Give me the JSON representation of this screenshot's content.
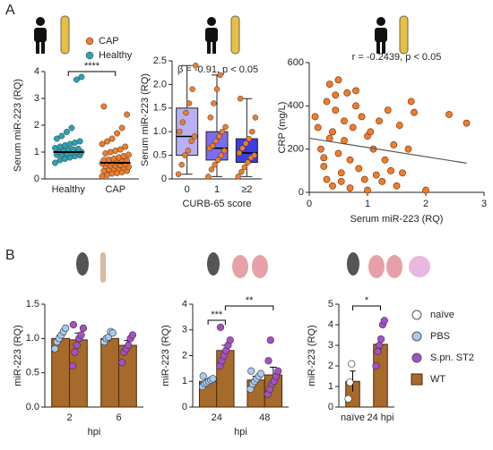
{
  "panel_labels": [
    "A",
    "B"
  ],
  "chart_data": [
    {
      "type": "strip",
      "ylabel": "Serum miR-223 (RQ)",
      "categories": [
        "Healthy",
        "CAP"
      ],
      "series": [
        {
          "name": "CAP",
          "color": "#f07c2a",
          "values": [
            0.1,
            0.15,
            0.2,
            0.22,
            0.25,
            0.3,
            0.3,
            0.35,
            0.38,
            0.4,
            0.42,
            0.45,
            0.48,
            0.5,
            0.5,
            0.52,
            0.55,
            0.58,
            0.6,
            0.6,
            0.62,
            0.65,
            0.68,
            0.7,
            0.72,
            0.75,
            0.8,
            0.85,
            0.9,
            0.95,
            1.0,
            1.05,
            1.1,
            1.2,
            1.3,
            1.4,
            1.5,
            1.7,
            1.9,
            2.4,
            2.7
          ]
        },
        {
          "name": "Healthy",
          "color": "#2ba3b3",
          "values": [
            0.6,
            0.7,
            0.75,
            0.8,
            0.85,
            0.88,
            0.9,
            0.92,
            0.95,
            0.98,
            1.0,
            1.0,
            1.02,
            1.05,
            1.08,
            1.1,
            1.12,
            1.15,
            1.2,
            1.25,
            1.3,
            1.35,
            1.4,
            1.5,
            1.6,
            1.75,
            1.9,
            3.7,
            3.8
          ]
        }
      ],
      "medians": [
        1.0,
        0.6
      ],
      "ylim": [
        0,
        4
      ],
      "yticks": [
        0,
        1,
        2,
        3,
        4
      ],
      "annotation": "****"
    },
    {
      "type": "box",
      "ylabel": "Serum miR-223 (RQ)",
      "xlabel": "CURB-65 score",
      "categories": [
        "0",
        "1",
        "≥2"
      ],
      "annotation": "β = -0.91, p < 0.05",
      "colors": [
        "#b9b0f2",
        "#7a6ef0",
        "#3b3fe0"
      ],
      "point_color": "#f07c2a",
      "boxes": [
        {
          "min": 0.1,
          "q1": 0.5,
          "median": 0.9,
          "q3": 1.5,
          "max": 2.4
        },
        {
          "min": 0.05,
          "q1": 0.4,
          "median": 0.65,
          "q3": 1.0,
          "max": 2.2
        },
        {
          "min": 0.05,
          "q1": 0.35,
          "median": 0.55,
          "q3": 0.85,
          "max": 1.7
        }
      ],
      "points": [
        [
          0.1,
          0.3,
          0.5,
          0.6,
          0.8,
          0.9,
          1.0,
          1.2,
          1.4,
          1.6,
          1.9,
          2.4
        ],
        [
          0.05,
          0.2,
          0.3,
          0.4,
          0.5,
          0.6,
          0.65,
          0.7,
          0.8,
          0.9,
          1.0,
          1.1,
          1.3,
          1.6,
          1.9,
          2.2
        ],
        [
          0.05,
          0.15,
          0.25,
          0.35,
          0.45,
          0.5,
          0.55,
          0.65,
          0.75,
          0.85,
          1.0,
          1.3,
          1.7
        ]
      ],
      "ylim": [
        0,
        2.5
      ],
      "yticks": [
        0,
        {
          "value": 0.5,
          "label": "0.5"
        },
        {
          "value": 1,
          "label": "1.0"
        },
        {
          "value": 1.5,
          "label": "1.5"
        },
        {
          "value": 2,
          "label": "2.0"
        },
        {
          "value": 2.5,
          "label": "2.5"
        }
      ]
    },
    {
      "type": "scatter",
      "xlabel": "Serum miR-223 (RQ)",
      "ylabel": "CRP (mg/L)",
      "annotation": "r = -0.2439, p < 0.05",
      "color": "#f07c2a",
      "x": [
        0.1,
        0.15,
        0.2,
        0.25,
        0.3,
        0.3,
        0.35,
        0.4,
        0.4,
        0.45,
        0.5,
        0.5,
        0.55,
        0.6,
        0.6,
        0.65,
        0.7,
        0.7,
        0.75,
        0.8,
        0.85,
        0.9,
        0.95,
        1.0,
        1.0,
        1.1,
        1.15,
        1.2,
        1.25,
        1.3,
        1.35,
        1.4,
        1.5,
        1.55,
        1.6,
        1.7,
        1.75,
        1.8,
        2.0,
        2.4,
        2.7,
        0.45,
        0.55,
        0.35,
        0.25,
        1.05,
        0.8,
        1.45
      ],
      "y": [
        350,
        300,
        200,
        120,
        420,
        60,
        500,
        280,
        30,
        380,
        520,
        180,
        90,
        330,
        240,
        460,
        150,
        20,
        300,
        400,
        110,
        350,
        60,
        260,
        10,
        200,
        80,
        330,
        50,
        150,
        380,
        100,
        30,
        310,
        90,
        200,
        420,
        370,
        10,
        360,
        320,
        450,
        50,
        250,
        160,
        280,
        470,
        220
      ],
      "line": {
        "x": [
          0,
          2.7
        ],
        "y": [
          250,
          135
        ]
      },
      "xlim": [
        0,
        3
      ],
      "xticks": [
        0,
        1,
        2,
        3
      ],
      "ylim": [
        0,
        600
      ],
      "yticks": [
        0,
        200,
        400,
        600
      ]
    },
    {
      "type": "bar",
      "ylabel": "miR-223 (RQ)",
      "xlabel": "hpi",
      "categories": [
        "2",
        "6"
      ],
      "bar_color": "#a66a2a",
      "series": [
        {
          "point_color": "#a9c9f0",
          "values": [
            1.0,
            1.0
          ],
          "errors": [
            0.05,
            0.04
          ],
          "points": [
            [
              0.85,
              0.95,
              1.0,
              1.05,
              1.1,
              1.15
            ],
            [
              0.95,
              1.0,
              1.02,
              1.1,
              1.08
            ]
          ]
        },
        {
          "point_color": "#a64fc9",
          "values": [
            0.98,
            0.9
          ],
          "errors": [
            0.1,
            0.07
          ],
          "points": [
            [
              0.6,
              0.8,
              0.9,
              1.0,
              1.05,
              1.15,
              1.2
            ],
            [
              0.65,
              0.8,
              0.85,
              0.9,
              1.0,
              1.05
            ]
          ]
        }
      ],
      "ylim": [
        0,
        1.5
      ],
      "yticks": [
        {
          "value": 0,
          "label": "0.0"
        },
        {
          "value": 0.5,
          "label": "0.5"
        },
        {
          "value": 1,
          "label": "1.0"
        },
        {
          "value": 1.5,
          "label": "1.5"
        }
      ]
    },
    {
      "type": "bar",
      "ylabel": "miR-223 (RQ)",
      "xlabel": "hpi",
      "categories": [
        "24",
        "48"
      ],
      "bar_color": "#a66a2a",
      "annotations": [
        "***",
        "**"
      ],
      "series": [
        {
          "point_color": "#a9c9f0",
          "values": [
            1.0,
            1.05
          ],
          "errors": [
            0.08,
            0.15
          ],
          "points": [
            [
              0.8,
              0.9,
              0.95,
              1.0,
              1.05,
              1.1,
              1.2
            ],
            [
              0.7,
              0.9,
              1.0,
              1.1,
              1.2,
              1.3,
              1.4
            ]
          ]
        },
        {
          "point_color": "#a64fc9",
          "values": [
            2.2,
            1.25
          ],
          "errors": [
            0.2,
            0.3
          ],
          "points": [
            [
              1.6,
              1.8,
              2.0,
              2.2,
              2.4,
              2.6,
              3.1
            ],
            [
              0.5,
              0.7,
              0.9,
              1.0,
              1.2,
              1.4,
              1.8,
              2.6
            ]
          ]
        }
      ],
      "ylim": [
        0,
        4
      ],
      "yticks": [
        0,
        1,
        2,
        3,
        4
      ]
    },
    {
      "type": "bar",
      "ylabel": "miR-223 (RQ)",
      "categories": [
        "naïve",
        "24 hpi"
      ],
      "bar_color": "#a66a2a",
      "annotations": [
        "*"
      ],
      "series": [
        {
          "point_colors": [
            "#ffffff",
            "#a64fc9"
          ],
          "values": [
            1.25,
            3.05
          ],
          "errors": [
            0.5,
            0.35
          ],
          "points": [
            [
              0.4,
              1.2,
              2.1
            ],
            [
              2.0,
              2.7,
              3.0,
              3.3,
              4.0,
              4.2
            ]
          ]
        }
      ],
      "ylim": [
        0,
        5
      ],
      "yticks": [
        0,
        1,
        2,
        3,
        4,
        5
      ]
    }
  ],
  "legend": [
    {
      "name": "naïve",
      "color": "#ffffff",
      "shape": "circle"
    },
    {
      "name": "PBS",
      "color": "#a9c9f0",
      "shape": "circle"
    },
    {
      "name": "S.pn. ST2",
      "color": "#a64fc9",
      "shape": "circle"
    },
    {
      "name": "WT",
      "color": "#a66a2a",
      "shape": "square"
    }
  ]
}
